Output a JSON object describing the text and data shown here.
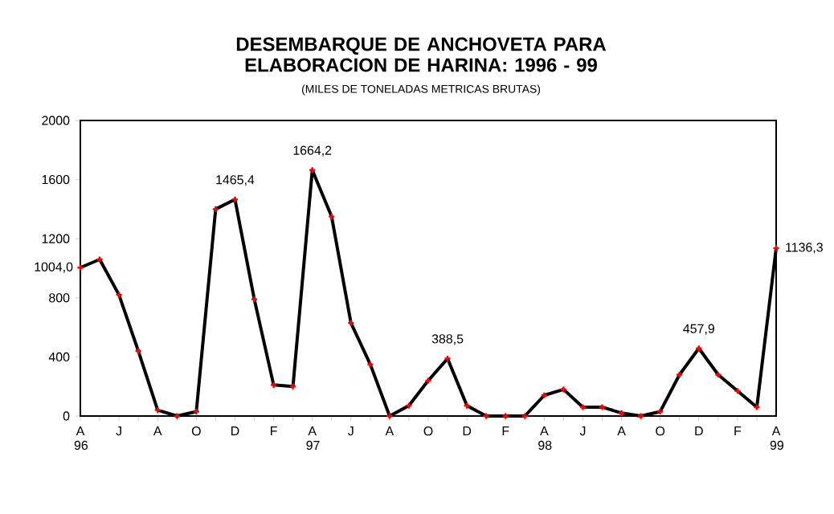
{
  "chart_data": {
    "type": "line",
    "title": "DESEMBARQUE DE ANCHOVETA PARA ELABORACION DE HARINA: 1996 - 99",
    "subtitle": "(MILES DE TONELADAS METRICAS BRUTAS)",
    "categories": [
      "A 96",
      null,
      "J",
      null,
      "A",
      null,
      "O",
      null,
      "D",
      null,
      "F",
      null,
      "A 97",
      null,
      "J",
      null,
      "A",
      null,
      "O",
      null,
      "D",
      null,
      "F",
      null,
      "A 98",
      null,
      "J",
      null,
      "A",
      null,
      "O",
      null,
      "D",
      null,
      "F",
      null,
      "A 99"
    ],
    "series": [
      {
        "color": "#000000",
        "values": [
          1004.0,
          1060,
          820,
          440,
          40,
          0,
          30,
          1400,
          1465.4,
          790,
          210,
          200,
          1664.2,
          1350,
          630,
          350,
          0,
          70,
          240,
          388.5,
          70,
          0,
          0,
          0,
          140,
          180,
          60,
          60,
          20,
          0,
          30,
          280,
          457.9,
          280,
          170,
          60,
          1136.3
        ],
        "value_labels": [
          "1004,0",
          null,
          null,
          null,
          null,
          null,
          null,
          null,
          "1465,4",
          null,
          null,
          null,
          "1664,2",
          null,
          null,
          null,
          null,
          null,
          null,
          "388,5",
          null,
          null,
          null,
          null,
          null,
          null,
          null,
          null,
          null,
          null,
          null,
          null,
          "457,9",
          null,
          null,
          null,
          "1136,3"
        ]
      }
    ],
    "ylim": [
      0,
      2000
    ],
    "yticks": [
      0,
      400,
      800,
      1200,
      1600,
      2000
    ],
    "grid": false,
    "marker": "cross",
    "line_style": "solid"
  }
}
